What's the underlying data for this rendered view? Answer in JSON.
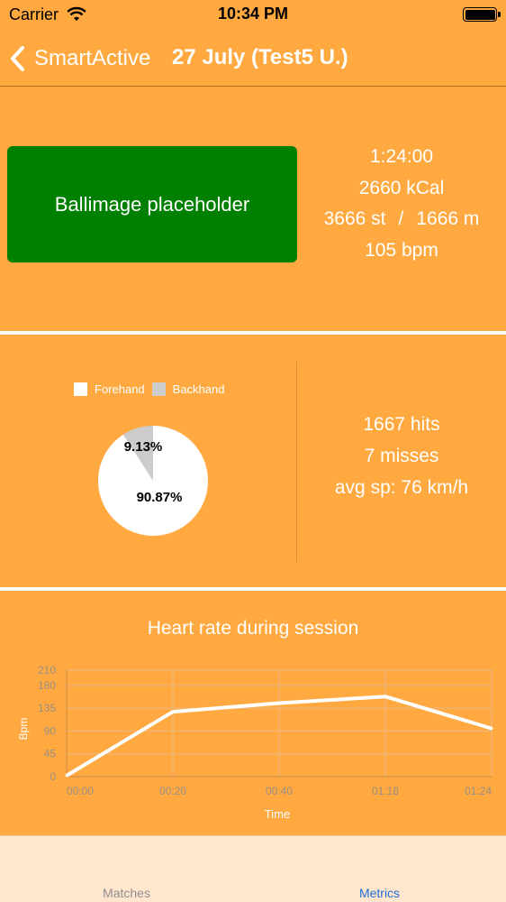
{
  "status_bar": {
    "carrier": "Carrier",
    "time": "10:34 PM"
  },
  "nav": {
    "back_label": "SmartActive",
    "title": "27 July (Test5 U.)"
  },
  "summary": {
    "placeholder": "Ballimage placeholder",
    "duration": "1:24:00",
    "calories": "2660 kCal",
    "steps": "3666 st",
    "separator": "/",
    "distance": "1666 m",
    "bpm": "105 bpm"
  },
  "hits": {
    "legend": [
      "Forehand",
      "Backhand"
    ],
    "forehand_pct_label": "90.87%",
    "backhand_pct_label": "9.13%",
    "hits": "1667 hits",
    "misses": "7 misses",
    "avg_speed": "avg sp: 76 km/h"
  },
  "chart_data": [
    {
      "type": "pie",
      "labels": [
        "Forehand",
        "Backhand"
      ],
      "values": [
        90.87,
        9.13
      ],
      "colors": [
        "#ffffff",
        "#cccccc"
      ],
      "legend": "top"
    },
    {
      "type": "line",
      "title": "Heart rate during session",
      "xlabel": "Time",
      "ylabel": "Bpm",
      "x": [
        "00:00",
        "00:20",
        "00:40",
        "01:18",
        "01:24"
      ],
      "series": [
        {
          "values": [
            2,
            128,
            145,
            158,
            95
          ]
        }
      ],
      "yticks": [
        0,
        45,
        90,
        135,
        180,
        210
      ],
      "ylim": [
        0,
        210
      ],
      "grid": true,
      "line_color": "#ffffff"
    }
  ],
  "tabs": [
    {
      "label": "Matches",
      "active": false
    },
    {
      "label": "Metrics",
      "active": true
    }
  ],
  "colors": {
    "background": "#FFA940",
    "placeholder": "#008000",
    "active_tab": "#1e6fd9",
    "tab_bar": "#FFE6CC"
  }
}
